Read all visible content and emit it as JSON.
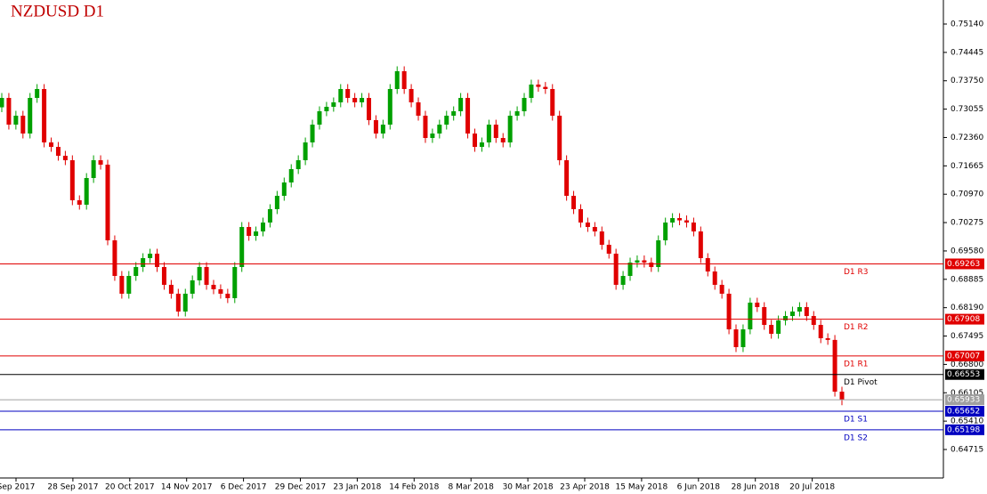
{
  "chart_data": {
    "type": "candlestick",
    "title": "NZDUSD D1",
    "up_color": "#00a000",
    "down_color": "#e00000",
    "ylim": [
      0.64017,
      0.75729
    ],
    "yticks": [
      {
        "value": 0.7514,
        "label": "0.75140"
      },
      0.74445,
      {
        "value": 0.7375,
        "label": "0.73750"
      },
      0.73055,
      {
        "value": 0.7236,
        "label": "0.72360"
      },
      0.71665,
      {
        "value": 0.7097,
        "label": "0.70970"
      },
      0.70275,
      {
        "value": 0.6958,
        "label": "0.69580"
      },
      0.68885,
      {
        "value": 0.6819,
        "label": "0.68190"
      },
      0.67495,
      {
        "value": 0.668,
        "label": "0.66800"
      },
      0.66105,
      {
        "value": 0.6541,
        "label": "0.65410"
      },
      0.64715
    ],
    "x_labels": [
      "Sep 2017",
      "28 Sep 2017",
      "20 Oct 2017",
      "14 Nov 2017",
      "6 Dec 2017",
      "29 Dec 2017",
      "23 Jan 2018",
      "14 Feb 2018",
      "8 Mar 2018",
      "30 Mar 2018",
      "23 Apr 2018",
      "15 May 2018",
      "6 Jun 2018",
      "28 Jun 2018",
      "20 Jul 2018"
    ],
    "levels": [
      {
        "name": "D1 R3",
        "value": 0.69263,
        "color": "#e00000"
      },
      {
        "name": "D1 R2",
        "value": 0.67908,
        "color": "#e00000"
      },
      {
        "name": "D1 R1",
        "value": 0.67007,
        "color": "#e00000"
      },
      {
        "name": "D1 Pivot",
        "value": 0.66553,
        "color": "#000000"
      },
      {
        "name": "D1 S1",
        "value": 0.65652,
        "color": "#0000c0"
      },
      {
        "name": "D1 S2",
        "value": 0.65198,
        "color": "#0000c0"
      }
    ],
    "current_price": 0.65933,
    "current_color": "#a0a0a0",
    "open": [
      0.731,
      0.7333,
      0.72675,
      0.72894,
      0.72457,
      0.7333,
      0.73548,
      0.72239,
      0.7213,
      0.71912,
      0.71803,
      0.70822,
      0.70713,
      0.71367,
      0.71803,
      0.71694,
      0.6984,
      0.68968,
      0.68532,
      0.68968,
      0.69186,
      0.69404,
      0.69513,
      0.69186,
      0.6875,
      0.68532,
      0.68095,
      0.68532,
      0.68859,
      0.69186,
      0.6875,
      0.68641,
      0.68532,
      0.68423,
      0.69186,
      0.70167,
      0.69949,
      0.70058,
      0.70276,
      0.70604,
      0.70931,
      0.71258,
      0.71585,
      0.71803,
      0.72239,
      0.72675,
      0.73003,
      0.73112,
      0.73221,
      0.73548,
      0.7333,
      0.73221,
      0.7333,
      0.72785,
      0.72457,
      0.72675,
      0.73548,
      0.73984,
      0.73548,
      0.73221,
      0.72894,
      0.72348,
      0.72457,
      0.72675,
      0.72894,
      0.73003,
      0.7333,
      0.72457,
      0.7213,
      0.72239,
      0.72675,
      0.72348,
      0.72239,
      0.72894,
      0.73003,
      0.7333,
      0.73657,
      0.736,
      0.73548,
      0.72894,
      0.71803,
      0.70931,
      0.70604,
      0.70276,
      0.70167,
      0.70058,
      0.69731,
      0.69513,
      0.6875,
      0.68968,
      0.69295,
      0.6935,
      0.69295,
      0.69186,
      0.6984,
      0.70276,
      0.70385,
      0.7033,
      0.70276,
      0.70058,
      0.69404,
      0.69077,
      0.6875,
      0.68532,
      0.67659,
      0.67223,
      0.67659,
      0.68313,
      0.68204,
      0.67768,
      0.6755,
      0.67877,
      0.67986,
      0.68095,
      0.68204,
      0.67986,
      0.67768,
      0.67441,
      0.674,
      0.66132
    ],
    "high": [
      0.7345,
      0.7345,
      0.73014,
      0.73014,
      0.7345,
      0.73668,
      0.73668,
      0.72359,
      0.7225,
      0.72032,
      0.71923,
      0.70942,
      0.71487,
      0.71923,
      0.71923,
      0.71814,
      0.6996,
      0.69088,
      0.69088,
      0.69306,
      0.69524,
      0.69633,
      0.69633,
      0.69306,
      0.6887,
      0.68652,
      0.68652,
      0.68979,
      0.69306,
      0.69306,
      0.6887,
      0.68761,
      0.68652,
      0.69306,
      0.70287,
      0.70287,
      0.70178,
      0.70396,
      0.70724,
      0.71051,
      0.71378,
      0.71705,
      0.71923,
      0.72359,
      0.72795,
      0.73123,
      0.73232,
      0.73341,
      0.73668,
      0.73668,
      0.7345,
      0.7345,
      0.7345,
      0.72905,
      0.72795,
      0.73668,
      0.74104,
      0.74104,
      0.73668,
      0.73341,
      0.73014,
      0.72577,
      0.72795,
      0.73014,
      0.73123,
      0.7345,
      0.7345,
      0.72577,
      0.72359,
      0.72795,
      0.72795,
      0.72468,
      0.73014,
      0.73123,
      0.7345,
      0.73777,
      0.73777,
      0.7372,
      0.73668,
      0.73014,
      0.71923,
      0.71051,
      0.70724,
      0.70396,
      0.70287,
      0.70178,
      0.69851,
      0.69633,
      0.69088,
      0.69415,
      0.6947,
      0.6947,
      0.69415,
      0.6996,
      0.70396,
      0.70505,
      0.70505,
      0.7045,
      0.70396,
      0.70178,
      0.69524,
      0.69197,
      0.6887,
      0.68652,
      0.67779,
      0.67779,
      0.68433,
      0.68433,
      0.68324,
      0.67888,
      0.67997,
      0.68106,
      0.68215,
      0.68324,
      0.68324,
      0.68106,
      0.67888,
      0.67561,
      0.6752,
      0.66252
    ],
    "low": [
      0.7298,
      0.72555,
      0.72555,
      0.72337,
      0.72337,
      0.7321,
      0.72119,
      0.7201,
      0.71792,
      0.71683,
      0.70702,
      0.70593,
      0.70593,
      0.71247,
      0.71574,
      0.6972,
      0.68848,
      0.68412,
      0.68412,
      0.68848,
      0.69066,
      0.69284,
      0.69066,
      0.6863,
      0.68412,
      0.67975,
      0.67975,
      0.68412,
      0.68739,
      0.6863,
      0.68521,
      0.68412,
      0.68303,
      0.68303,
      0.69066,
      0.69829,
      0.69829,
      0.69938,
      0.70156,
      0.70484,
      0.70811,
      0.71138,
      0.71465,
      0.71683,
      0.72119,
      0.72555,
      0.72883,
      0.72992,
      0.73101,
      0.7321,
      0.73101,
      0.73101,
      0.72665,
      0.72337,
      0.72337,
      0.72555,
      0.73428,
      0.73428,
      0.73101,
      0.72774,
      0.72228,
      0.72228,
      0.72337,
      0.72555,
      0.72774,
      0.72883,
      0.72337,
      0.7201,
      0.7201,
      0.72119,
      0.72228,
      0.72119,
      0.72119,
      0.72774,
      0.72883,
      0.7321,
      0.7348,
      0.73428,
      0.72774,
      0.71683,
      0.70811,
      0.70484,
      0.70156,
      0.70047,
      0.69938,
      0.69611,
      0.69393,
      0.6863,
      0.6863,
      0.68848,
      0.69175,
      0.69175,
      0.69066,
      0.69066,
      0.6972,
      0.70156,
      0.7021,
      0.70156,
      0.69938,
      0.69284,
      0.68957,
      0.6863,
      0.68412,
      0.67539,
      0.67103,
      0.67103,
      0.67539,
      0.68084,
      0.67648,
      0.6743,
      0.6743,
      0.67757,
      0.67866,
      0.67975,
      0.67866,
      0.67648,
      0.67321,
      0.6728,
      0.66012,
      0.658
    ],
    "close": [
      0.7333,
      0.72675,
      0.72894,
      0.72457,
      0.7333,
      0.73548,
      0.72239,
      0.7213,
      0.71912,
      0.71803,
      0.70822,
      0.70713,
      0.71367,
      0.71803,
      0.71694,
      0.6984,
      0.68968,
      0.68532,
      0.68968,
      0.69186,
      0.69404,
      0.69513,
      0.69186,
      0.6875,
      0.68532,
      0.68095,
      0.68532,
      0.68859,
      0.69186,
      0.6875,
      0.68641,
      0.68532,
      0.68423,
      0.69186,
      0.70167,
      0.69949,
      0.70058,
      0.70276,
      0.70604,
      0.70931,
      0.71258,
      0.71585,
      0.71803,
      0.72239,
      0.72675,
      0.73003,
      0.73112,
      0.73221,
      0.73548,
      0.7333,
      0.73221,
      0.7333,
      0.72785,
      0.72457,
      0.72675,
      0.73548,
      0.73984,
      0.73548,
      0.73221,
      0.72894,
      0.72348,
      0.72457,
      0.72675,
      0.72894,
      0.73003,
      0.7333,
      0.72457,
      0.7213,
      0.72239,
      0.72675,
      0.72348,
      0.72239,
      0.72894,
      0.73003,
      0.7333,
      0.73657,
      0.736,
      0.73548,
      0.72894,
      0.71803,
      0.70931,
      0.70604,
      0.70276,
      0.70167,
      0.70058,
      0.69731,
      0.69513,
      0.6875,
      0.68968,
      0.69295,
      0.6935,
      0.69295,
      0.69186,
      0.6984,
      0.70276,
      0.70385,
      0.7033,
      0.70276,
      0.70058,
      0.69404,
      0.69077,
      0.6875,
      0.68532,
      0.67659,
      0.67223,
      0.67659,
      0.68313,
      0.68204,
      0.67768,
      0.6755,
      0.67877,
      0.67986,
      0.68095,
      0.68204,
      0.67986,
      0.67768,
      0.67441,
      0.674,
      0.66132,
      0.65933
    ]
  }
}
